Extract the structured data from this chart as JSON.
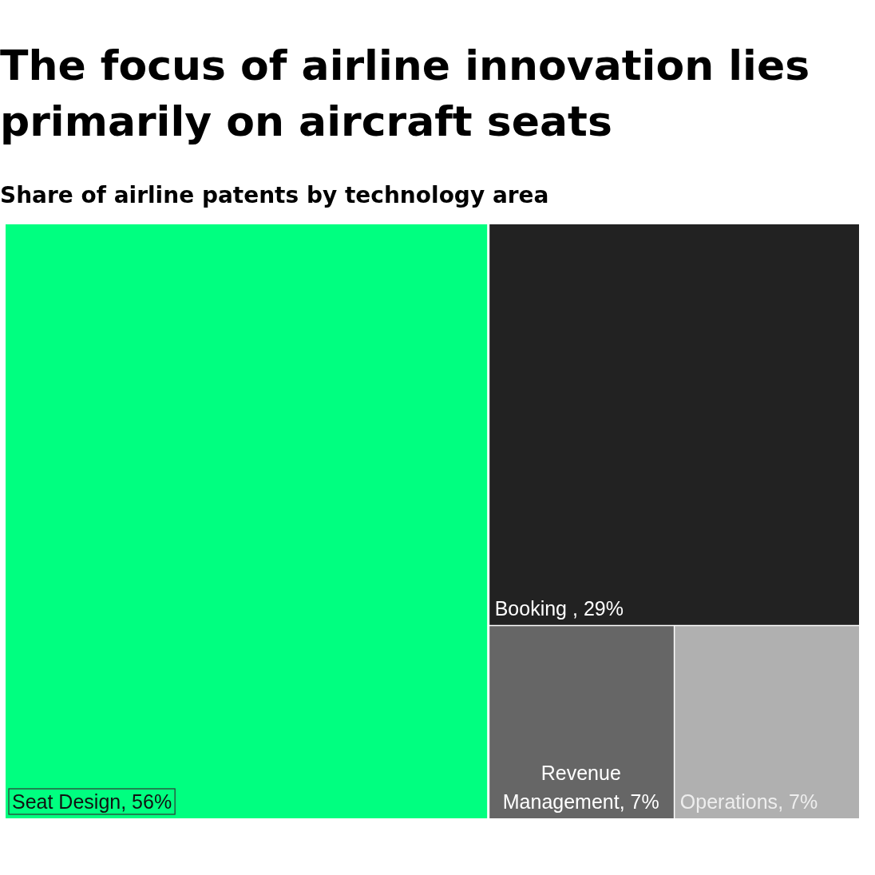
{
  "chart_data": {
    "type": "other",
    "title": "The focus of airline innovation lies primarily on aircraft seats",
    "subtitle": "Share of airline patents by technology area",
    "categories": [
      "Seat Design",
      "Booking ",
      "Revenue Management",
      "Operations"
    ],
    "values": [
      56,
      29,
      7,
      7
    ],
    "value_labels": [
      ", 56%",
      ", 29%",
      ", 7%",
      ", 7%"
    ],
    "colors": [
      "#00ff80",
      "#222222",
      "#666666",
      "#b0b0b0"
    ]
  }
}
